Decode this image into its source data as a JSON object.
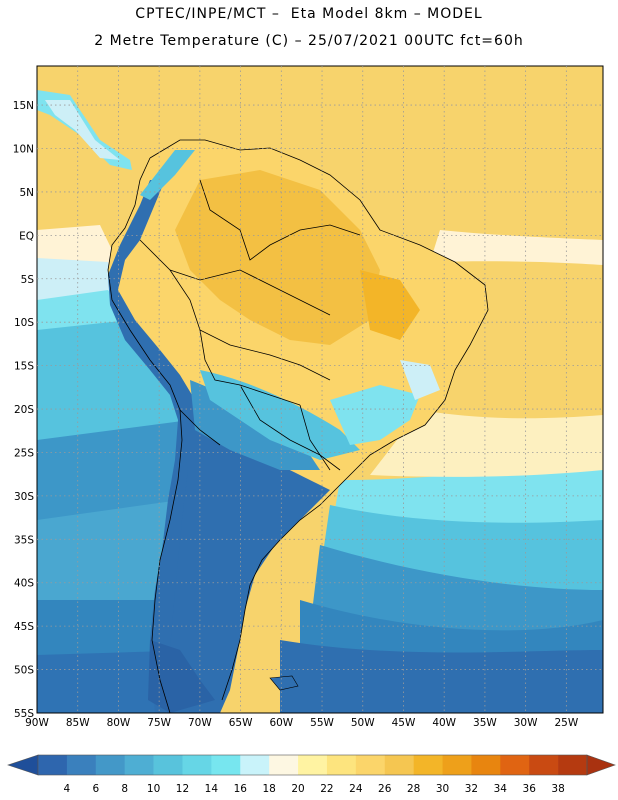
{
  "header": {
    "line1": "CPTEC/INPE/MCT –  Eta Model 8km – MODEL",
    "line2": "2 Metre Temperature (C) – 25/07/2021 00UTC fct=60h"
  },
  "map": {
    "lat_labels": [
      "15N",
      "10N",
      "5N",
      "EQ",
      "5S",
      "10S",
      "15S",
      "20S",
      "25S",
      "30S",
      "35S",
      "40S",
      "45S",
      "50S",
      "55S"
    ],
    "lon_labels": [
      "90W",
      "85W",
      "80W",
      "75W",
      "70W",
      "65W",
      "60W",
      "55W",
      "50W",
      "45W",
      "40W",
      "35W",
      "30W",
      "25W"
    ],
    "grid": "dotted",
    "palette": {
      "ocean_far_south": "#2f6fb0",
      "ocean_mid": "#3d97c8",
      "ocean_cool": "#56c3de",
      "ocean_light": "#7fe3ef",
      "ocean_tropic_west": "#cdeff7",
      "equatorial_band": "#fff3d6",
      "land_warm": "#fbd56a",
      "land_hot": "#f3c043",
      "andes_cold": "#2f6fb0"
    }
  },
  "colorbar": {
    "ticks": [
      "4",
      "6",
      "8",
      "10",
      "12",
      "14",
      "16",
      "18",
      "20",
      "22",
      "24",
      "26",
      "28",
      "30",
      "32",
      "34",
      "36",
      "38"
    ],
    "colors": [
      "#2e66ae",
      "#3a80bd",
      "#4398c8",
      "#4eaed3",
      "#58c3dc",
      "#66d6e6",
      "#77e6ef",
      "#c9f3fa",
      "#fdf7e2",
      "#fff3a2",
      "#fde47e",
      "#fbd56a",
      "#f5c651",
      "#f3b528",
      "#eea01a",
      "#e8850f",
      "#e06412",
      "#c94a12",
      "#b53a10"
    ],
    "under_color": "#1f4f9a",
    "over_color": "#a93210"
  }
}
